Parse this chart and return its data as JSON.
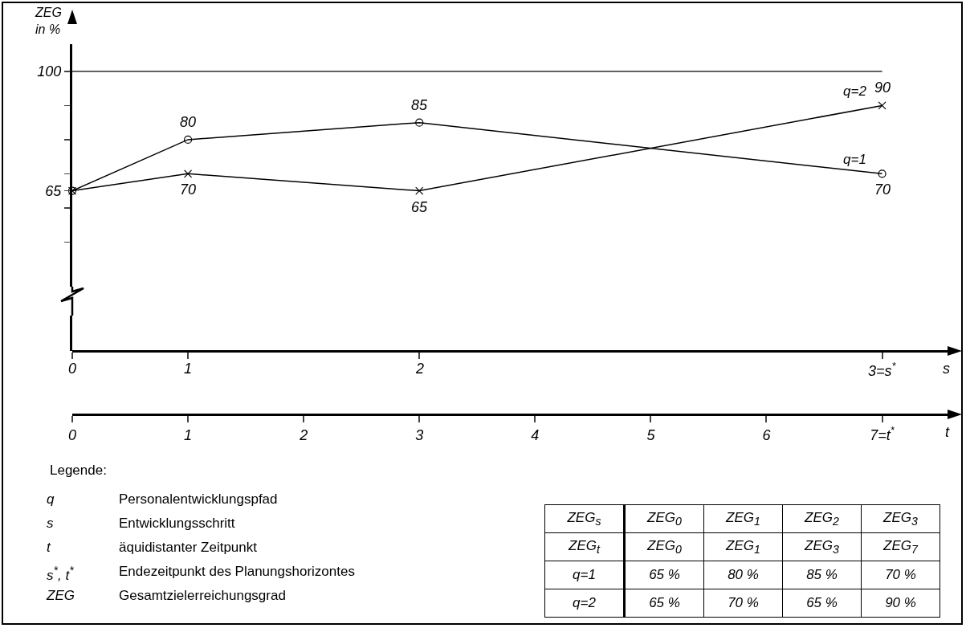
{
  "chart_data": {
    "type": "line",
    "ylabel": "ZEG\nin %",
    "xlabel": "t",
    "x2label": "s",
    "x": [
      0,
      1,
      3,
      7
    ],
    "series": [
      {
        "name": "q=1",
        "color": "#000000",
        "marker": "circle",
        "values": [
          65,
          80,
          85,
          70
        ],
        "value_labels": [
          null,
          "80",
          "85",
          "70"
        ]
      },
      {
        "name": "q=2",
        "color": "#000000",
        "marker": "cross",
        "values": [
          65,
          70,
          65,
          90
        ],
        "value_labels": [
          null,
          "70",
          "65",
          "90"
        ]
      }
    ],
    "xlim": [
      0,
      7.6
    ],
    "xticks": [
      0,
      1,
      2,
      3,
      4,
      5,
      6,
      {
        "value": 7,
        "label": "7=t$^{*}$"
      }
    ],
    "data_labels": true,
    "ylim": [
      18,
      108
    ],
    "yticks": [
      {
        "value": 50,
        "label": null
      },
      {
        "value": 60,
        "label": null
      },
      65,
      {
        "value": 70,
        "label": null
      },
      {
        "value": 80,
        "label": null
      },
      {
        "value": 90,
        "label": null
      },
      100
    ],
    "ref_lines": [
      {
        "axis": "y",
        "value": 100,
        "color": "#000000",
        "line_style": "solid"
      }
    ],
    "grid": false,
    "legend": false,
    "line_style": "solid",
    "annotations": [
      "0",
      "1",
      "2",
      "3=s$^{*}$",
      "Legende:",
      "q",
      "Personalentwicklungspfad",
      "s",
      "Entwicklungsschritt",
      "t",
      "äquidistanter Zeitpunkt",
      "s$^{*}$, t$^{*}$",
      "Endezeitpunkt des Planungshorizontes",
      "ZEG",
      "Gesamtzielerreichungsgrad",
      "ZEG$_{s}$",
      "ZEG$_{0}$",
      "ZEG$_{1}$",
      "ZEG$_{2}$",
      "ZEG$_{3}$",
      "ZEG$_{t}$",
      "ZEG$_{0}$",
      "ZEG$_{1}$",
      "ZEG$_{3}$",
      "ZEG$_{7}$",
      "q=1",
      "65 %",
      "80 %",
      "85 %",
      "70 %",
      "q=2",
      "65 %",
      "70 %",
      "65 %",
      "90 %"
    ]
  }
}
